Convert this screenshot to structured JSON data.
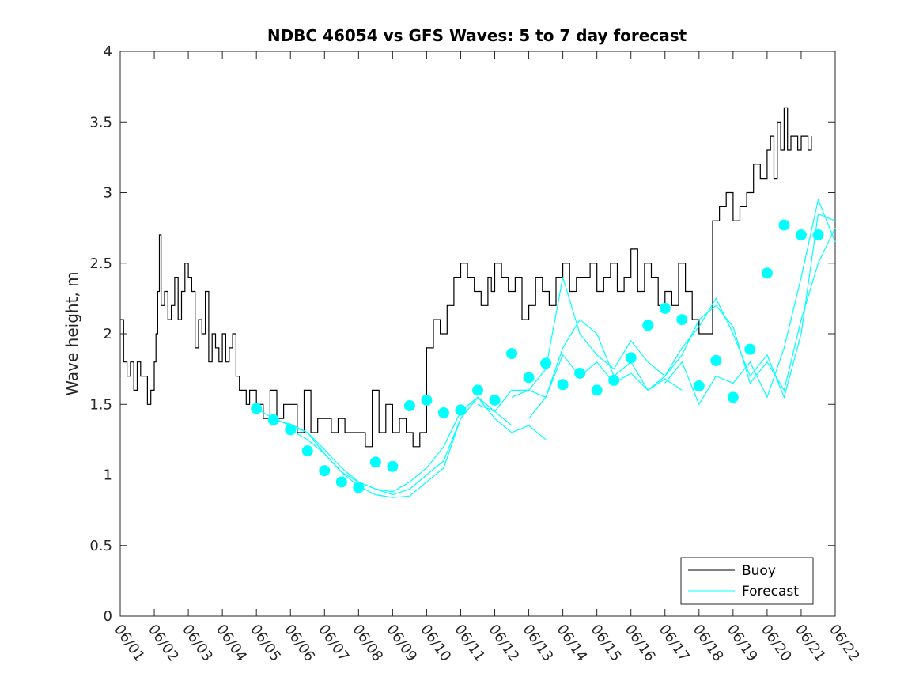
{
  "chart_data": {
    "type": "line",
    "title": "NDBC 46054 vs GFS Waves: 5 to 7 day forecast",
    "xlabel": "",
    "ylabel": "Wave height, m",
    "xlim": [
      0,
      21
    ],
    "ylim": [
      0,
      4
    ],
    "x_tick_labels": [
      "06/01",
      "06/02",
      "06/03",
      "06/04",
      "06/05",
      "06/06",
      "06/07",
      "06/08",
      "06/09",
      "06/10",
      "06/11",
      "06/12",
      "06/13",
      "06/14",
      "06/15",
      "06/16",
      "06/17",
      "06/18",
      "06/19",
      "06/20",
      "06/21",
      "06/22"
    ],
    "y_tick_values": [
      0,
      0.5,
      1,
      1.5,
      2,
      2.5,
      3,
      3.5,
      4
    ],
    "y_tick_labels": [
      "0",
      "0.5",
      "1",
      "1.5",
      "2",
      "2.5",
      "3",
      "3.5",
      "4"
    ],
    "grid": false,
    "legend_position": "bottom-right",
    "colors": {
      "buoy": "#000000",
      "forecast": "#00ffff",
      "axis": "#262626"
    },
    "series": [
      {
        "name": "Buoy",
        "x_unit": "days since 06/01 00:00",
        "x": [
          0.0,
          0.1,
          0.2,
          0.3,
          0.4,
          0.5,
          0.6,
          0.7,
          0.8,
          0.9,
          1.0,
          1.05,
          1.1,
          1.15,
          1.2,
          1.3,
          1.4,
          1.5,
          1.6,
          1.7,
          1.8,
          1.9,
          2.0,
          2.1,
          2.2,
          2.3,
          2.4,
          2.5,
          2.6,
          2.7,
          2.8,
          2.9,
          3.0,
          3.1,
          3.2,
          3.3,
          3.4,
          3.5,
          3.6,
          3.7,
          3.8,
          3.9,
          4.0,
          4.2,
          4.4,
          4.6,
          4.8,
          5.0,
          5.2,
          5.4,
          5.6,
          5.8,
          6.0,
          6.2,
          6.4,
          6.6,
          6.8,
          7.0,
          7.2,
          7.4,
          7.6,
          7.8,
          8.0,
          8.2,
          8.4,
          8.6,
          8.8,
          9.0,
          9.2,
          9.4,
          9.6,
          9.8,
          10.0,
          10.2,
          10.4,
          10.6,
          10.8,
          10.9,
          11.0,
          11.2,
          11.4,
          11.6,
          11.8,
          12.0,
          12.2,
          12.4,
          12.6,
          12.8,
          13.0,
          13.2,
          13.4,
          13.6,
          13.8,
          14.0,
          14.2,
          14.4,
          14.6,
          14.8,
          15.0,
          15.2,
          15.4,
          15.6,
          15.8,
          16.0,
          16.2,
          16.4,
          16.6,
          16.8,
          17.0,
          17.2,
          17.4,
          17.6,
          17.8,
          18.0,
          18.2,
          18.4,
          18.6,
          18.8,
          19.0,
          19.1,
          19.2,
          19.3,
          19.4,
          19.5,
          19.6,
          19.7,
          19.8,
          19.9,
          20.0,
          20.1,
          20.2,
          20.3
        ],
        "values": [
          2.1,
          1.8,
          1.7,
          1.8,
          1.6,
          1.8,
          1.7,
          1.7,
          1.5,
          1.6,
          1.8,
          2.0,
          2.3,
          2.7,
          2.2,
          2.3,
          2.1,
          2.2,
          2.4,
          2.1,
          2.3,
          2.5,
          2.4,
          2.3,
          1.9,
          2.1,
          2.0,
          2.3,
          1.8,
          2.0,
          1.9,
          1.8,
          2.0,
          1.8,
          1.9,
          2.0,
          1.7,
          1.6,
          1.6,
          1.5,
          1.6,
          1.6,
          1.5,
          1.4,
          1.6,
          1.4,
          1.5,
          1.5,
          1.3,
          1.6,
          1.3,
          1.4,
          1.4,
          1.3,
          1.4,
          1.3,
          1.3,
          1.3,
          1.2,
          1.6,
          1.3,
          1.5,
          1.3,
          1.4,
          1.3,
          1.2,
          1.3,
          1.9,
          2.1,
          2.0,
          2.2,
          2.4,
          2.5,
          2.4,
          2.3,
          2.2,
          2.4,
          2.3,
          2.5,
          2.4,
          2.3,
          2.4,
          2.1,
          2.2,
          2.4,
          2.3,
          2.2,
          2.4,
          2.5,
          2.3,
          2.4,
          2.4,
          2.5,
          2.3,
          2.4,
          2.5,
          2.3,
          2.4,
          2.6,
          2.3,
          2.5,
          2.4,
          2.2,
          2.3,
          2.2,
          2.5,
          2.3,
          2.1,
          2.0,
          2.0,
          2.8,
          2.9,
          3.0,
          2.8,
          2.9,
          3.0,
          3.2,
          3.1,
          3.3,
          3.4,
          3.1,
          3.5,
          3.3,
          3.6,
          3.3,
          3.4,
          3.4,
          3.3,
          3.4,
          3.4,
          3.3,
          3.4
        ]
      },
      {
        "name": "Forecast",
        "runs": [
          {
            "x": [
              4.0,
              4.5,
              5.0,
              5.5,
              6.0,
              6.5,
              7.0,
              7.5,
              8.0,
              8.5,
              9.0,
              9.5,
              10.0,
              10.5,
              11.0
            ],
            "values": [
              1.47,
              1.4,
              1.35,
              1.3,
              1.15,
              1.02,
              0.95,
              0.9,
              0.88,
              0.95,
              1.05,
              1.2,
              1.45,
              1.55,
              1.45
            ]
          },
          {
            "x": [
              4.5,
              5.0,
              5.5,
              6.0,
              6.5,
              7.0,
              7.5,
              8.0,
              8.5,
              9.0,
              9.5,
              10.0,
              10.5,
              11.0,
              11.5
            ],
            "values": [
              1.39,
              1.36,
              1.3,
              1.18,
              1.05,
              0.95,
              0.9,
              0.86,
              0.9,
              1.0,
              1.1,
              1.4,
              1.55,
              1.45,
              1.35
            ]
          },
          {
            "x": [
              5.0,
              5.5,
              6.0,
              6.5,
              7.0,
              7.5,
              8.0,
              8.5,
              9.0,
              9.5,
              10.0,
              10.5,
              11.0,
              11.5,
              12.0,
              12.5
            ],
            "values": [
              1.32,
              1.25,
              1.15,
              1.02,
              0.92,
              0.86,
              0.84,
              0.85,
              0.95,
              1.05,
              1.4,
              1.55,
              1.4,
              1.3,
              1.35,
              1.25
            ]
          },
          {
            "x": [
              10.5,
              11.0,
              11.5,
              12.0,
              12.5,
              13.0,
              13.5,
              14.0,
              14.5,
              15.0,
              15.5,
              16.0,
              16.5
            ],
            "values": [
              1.5,
              1.45,
              1.6,
              1.6,
              1.55,
              1.85,
              1.7,
              1.8,
              1.65,
              1.72,
              1.6,
              1.68,
              1.6
            ]
          },
          {
            "x": [
              11.5,
              12.0,
              12.5,
              13.0,
              13.5,
              14.0,
              14.5,
              15.0,
              15.5,
              16.0,
              16.5,
              17.0,
              17.5,
              18.0,
              18.5,
              19.0,
              19.5,
              20.0,
              20.5,
              21.0
            ],
            "values": [
              1.55,
              1.6,
              1.75,
              2.4,
              2.0,
              1.85,
              1.75,
              1.95,
              1.8,
              1.7,
              1.85,
              2.1,
              2.2,
              2.05,
              1.65,
              1.8,
              1.6,
              2.1,
              2.5,
              2.75
            ]
          },
          {
            "x": [
              12.0,
              12.5,
              13.0,
              13.5,
              14.0,
              14.5,
              15.0,
              15.5,
              16.0,
              16.5,
              17.0,
              17.5,
              18.0,
              18.5,
              19.0,
              19.5,
              20.0,
              20.5,
              21.0
            ],
            "values": [
              1.4,
              1.55,
              1.9,
              2.1,
              2.0,
              1.7,
              1.8,
              1.6,
              1.7,
              1.9,
              2.05,
              2.25,
              2.0,
              1.7,
              1.85,
              1.55,
              2.0,
              2.85,
              2.8
            ]
          },
          {
            "x": [
              16.0,
              16.5,
              17.0,
              17.5,
              18.0,
              18.5,
              19.0,
              19.5,
              20.0,
              20.5,
              21.0
            ],
            "values": [
              1.65,
              1.8,
              1.5,
              1.7,
              1.65,
              1.8,
              1.55,
              1.9,
              2.4,
              2.95,
              2.65
            ]
          }
        ],
        "points": {
          "x": [
            4.0,
            4.5,
            5.0,
            5.5,
            6.0,
            6.5,
            7.0,
            7.5,
            8.0,
            8.5,
            9.0,
            9.5,
            10.0,
            10.5,
            11.0,
            11.5,
            12.0,
            12.5,
            13.0,
            13.5,
            14.0,
            14.5,
            15.0,
            15.5,
            16.0,
            16.5,
            17.0,
            17.5,
            18.0,
            18.5,
            19.0,
            19.5,
            20.0,
            20.5
          ],
          "values": [
            1.47,
            1.39,
            1.32,
            1.17,
            1.03,
            0.95,
            0.91,
            1.09,
            1.06,
            1.49,
            1.53,
            1.44,
            1.46,
            1.6,
            1.53,
            1.86,
            1.69,
            1.79,
            1.64,
            1.72,
            1.6,
            1.67,
            1.83,
            2.06,
            2.18,
            2.1,
            1.63,
            1.81,
            1.55,
            1.89,
            2.43,
            2.77,
            2.7,
            2.7
          ]
        }
      }
    ]
  }
}
